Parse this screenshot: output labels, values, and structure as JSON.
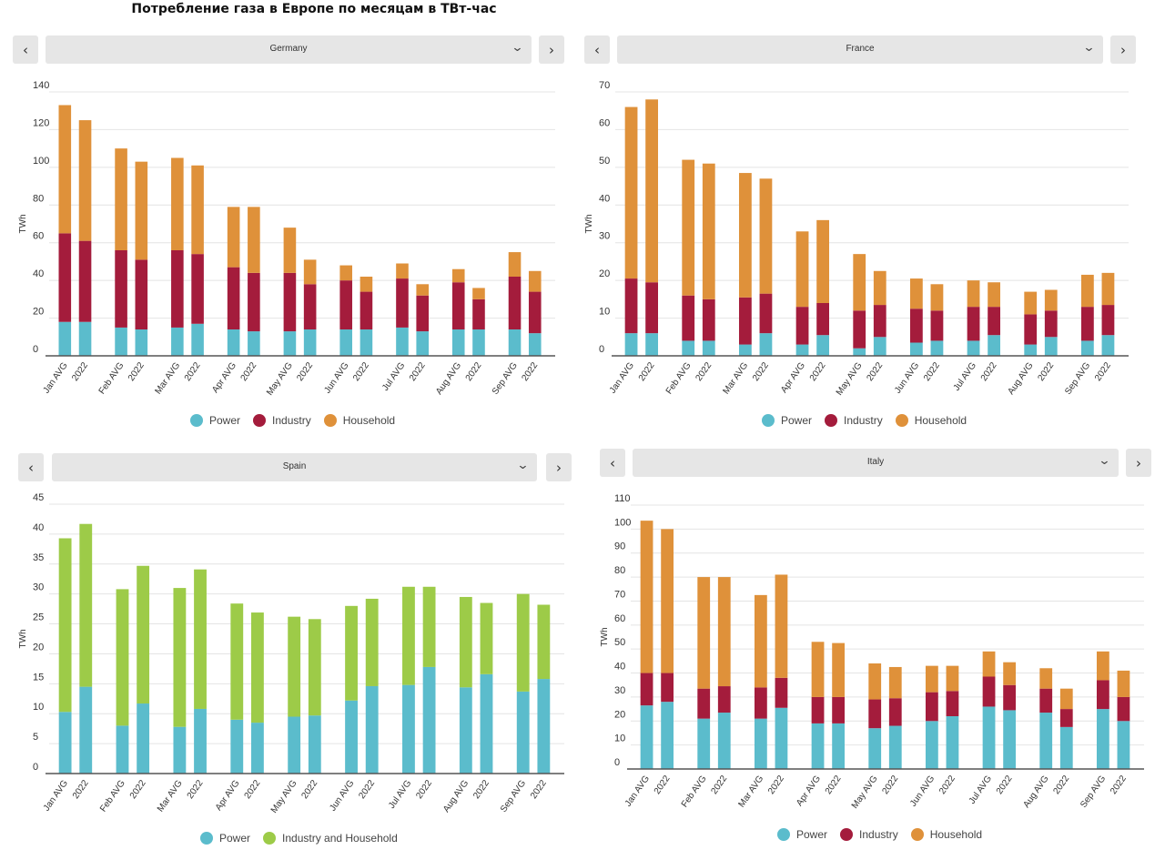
{
  "page": {
    "title": "Потребление газа в Европе по месяцам в ТВт-час"
  },
  "chart_data": [
    {
      "type": "bar",
      "stacked": true,
      "country": "Germany",
      "ylabel": "TWh",
      "ylim": [
        0,
        140
      ],
      "yticks": [
        0,
        20,
        40,
        60,
        80,
        100,
        120,
        140
      ],
      "grid": true,
      "legend_position": "bottom",
      "categories": [
        "Jan AVG",
        "2022",
        "Feb AVG",
        "2022",
        "Mar AVG",
        "2022",
        "Apr AVG",
        "2022",
        "May AVG",
        "2022",
        "Jun AVG",
        "2022",
        "Jul AVG",
        "2022",
        "Aug AVG",
        "2022",
        "Sep AVG",
        "2022"
      ],
      "series": [
        {
          "name": "Power",
          "color": "#5bbccc",
          "values": [
            18,
            18,
            15,
            14,
            15,
            17,
            14,
            13,
            13,
            14,
            14,
            14,
            15,
            13,
            14,
            14,
            14,
            12
          ]
        },
        {
          "name": "Industry",
          "color": "#a41c3c",
          "values": [
            47,
            43,
            41,
            37,
            41,
            37,
            33,
            31,
            31,
            24,
            26,
            20,
            26,
            19,
            25,
            16,
            28,
            22
          ]
        },
        {
          "name": "Household",
          "color": "#df913a",
          "values": [
            68,
            64,
            54,
            52,
            49,
            47,
            32,
            35,
            24,
            13,
            8,
            8,
            8,
            6,
            7,
            6,
            13,
            11
          ]
        }
      ]
    },
    {
      "type": "bar",
      "stacked": true,
      "country": "France",
      "ylabel": "TWh",
      "ylim": [
        0,
        70
      ],
      "yticks": [
        0,
        10,
        20,
        30,
        40,
        50,
        60,
        70
      ],
      "grid": true,
      "legend_position": "bottom",
      "categories": [
        "Jan AVG",
        "2022",
        "Feb AVG",
        "2022",
        "Mar AVG",
        "2022",
        "Apr AVG",
        "2022",
        "May AVG",
        "2022",
        "Jun AVG",
        "2022",
        "Jul AVG",
        "2022",
        "Aug AVG",
        "2022",
        "Sep AVG",
        "2022"
      ],
      "series": [
        {
          "name": "Power",
          "color": "#5bbccc",
          "values": [
            6,
            6,
            4,
            4,
            3,
            6,
            3,
            5.5,
            2,
            5,
            3.5,
            4,
            4,
            5.5,
            3,
            5,
            4,
            5.5
          ]
        },
        {
          "name": "Industry",
          "color": "#a41c3c",
          "values": [
            14.5,
            13.5,
            12,
            11,
            12.5,
            10.5,
            10,
            8.5,
            10,
            8.5,
            9,
            8,
            9,
            7.5,
            8,
            7,
            9,
            8
          ]
        },
        {
          "name": "Household",
          "color": "#df913a",
          "values": [
            45.5,
            48.5,
            36,
            36,
            33,
            30.5,
            20,
            22,
            15,
            9,
            8,
            7,
            7,
            6.5,
            6,
            5.5,
            8.5,
            8.5
          ]
        }
      ]
    },
    {
      "type": "bar",
      "stacked": true,
      "country": "Spain",
      "ylabel": "TWh",
      "ylim": [
        0,
        45
      ],
      "yticks": [
        0,
        5,
        10,
        15,
        20,
        25,
        30,
        35,
        40,
        45
      ],
      "grid": true,
      "legend_position": "bottom",
      "categories": [
        "Jan AVG",
        "2022",
        "Feb AVG",
        "2022",
        "Mar AVG",
        "2022",
        "Apr AVG",
        "2022",
        "May AVG",
        "2022",
        "Jun AVG",
        "2022",
        "Jul AVG",
        "2022",
        "Aug AVG",
        "2022",
        "Sep AVG",
        "2022"
      ],
      "series": [
        {
          "name": "Power",
          "color": "#5bbccc",
          "values": [
            10.3,
            14.5,
            8,
            11.7,
            7.8,
            10.8,
            9,
            8.5,
            9.5,
            9.7,
            12.2,
            14.6,
            14.8,
            17.8,
            14.4,
            16.6,
            13.7,
            15.8
          ]
        },
        {
          "name": "Industry and Household",
          "color": "#9dcb48",
          "values": [
            29,
            27.2,
            22.8,
            23,
            23.2,
            23.3,
            19.4,
            18.4,
            16.7,
            16.1,
            15.8,
            14.6,
            16.4,
            13.4,
            15.1,
            11.9,
            16.3,
            12.4
          ]
        }
      ]
    },
    {
      "type": "bar",
      "stacked": true,
      "country": "Italy",
      "ylabel": "TWh",
      "ylim": [
        0,
        110
      ],
      "yticks": [
        0,
        10,
        20,
        30,
        40,
        50,
        60,
        70,
        80,
        90,
        100,
        110
      ],
      "grid": true,
      "legend_position": "bottom",
      "categories": [
        "Jan AVG",
        "2022",
        "Feb AVG",
        "2022",
        "Mar AVG",
        "2022",
        "Apr AVG",
        "2022",
        "May AVG",
        "2022",
        "Jun AVG",
        "2022",
        "Jul AVG",
        "2022",
        "Aug AVG",
        "2022",
        "Sep AVG",
        "2022"
      ],
      "series": [
        {
          "name": "Power",
          "color": "#5bbccc",
          "values": [
            26.5,
            28,
            21,
            23.5,
            21,
            25.5,
            19,
            19,
            17,
            18,
            20,
            22,
            26,
            24.5,
            23.5,
            17.5,
            25,
            20
          ]
        },
        {
          "name": "Industry",
          "color": "#a41c3c",
          "values": [
            13.5,
            12,
            12.5,
            11,
            13,
            12.5,
            11,
            11,
            12,
            11.5,
            12,
            10.5,
            12.5,
            10.5,
            10,
            7.5,
            12,
            10
          ]
        },
        {
          "name": "Household",
          "color": "#df913a",
          "values": [
            63.5,
            60,
            46.5,
            45.5,
            38.5,
            43,
            23,
            22.5,
            15,
            13,
            11,
            10.5,
            10.5,
            9.5,
            8.5,
            8.5,
            12,
            11
          ]
        }
      ]
    }
  ]
}
